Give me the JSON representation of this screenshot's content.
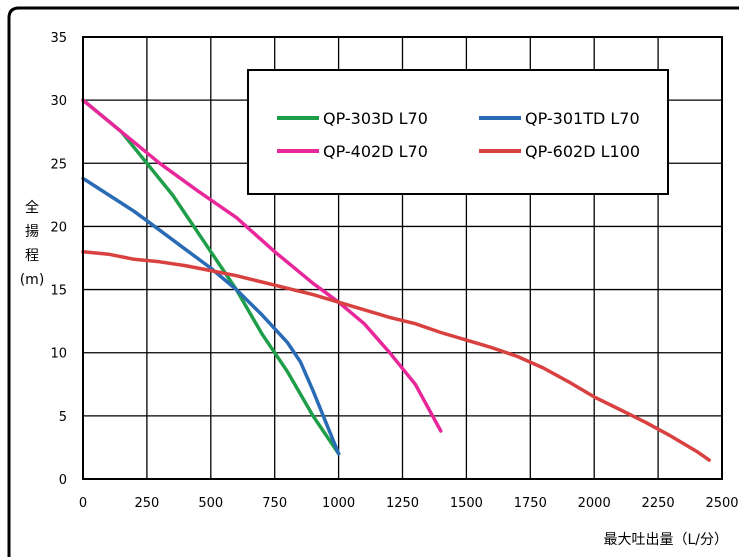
{
  "chart_data": {
    "type": "line",
    "title": "",
    "ylabel": "全揚程(m)",
    "xlabel": "最大吐出量（L/分）",
    "xlim": [
      0,
      2500
    ],
    "ylim": [
      0,
      35
    ],
    "x_ticks": [
      0,
      250,
      500,
      750,
      1000,
      1250,
      1500,
      1750,
      2000,
      2250,
      2500
    ],
    "y_ticks": [
      0,
      5,
      10,
      15,
      20,
      25,
      30,
      35
    ],
    "grid": true,
    "legend_position": "top-right",
    "series": [
      {
        "name": "QP-303D L70",
        "color": "#1f9e4a",
        "points": [
          [
            0,
            30
          ],
          [
            150,
            27.5
          ],
          [
            250,
            25
          ],
          [
            350,
            22.5
          ],
          [
            500,
            18
          ],
          [
            600,
            15
          ],
          [
            700,
            11.5
          ],
          [
            800,
            8.5
          ],
          [
            900,
            5
          ],
          [
            1000,
            2
          ]
        ]
      },
      {
        "name": "QP-402D L70",
        "color": "#e8289a",
        "points": [
          [
            0,
            30
          ],
          [
            150,
            27.5
          ],
          [
            300,
            25
          ],
          [
            450,
            22.8
          ],
          [
            600,
            20.7
          ],
          [
            750,
            18
          ],
          [
            900,
            15.5
          ],
          [
            1000,
            14
          ],
          [
            1100,
            12.3
          ],
          [
            1200,
            10
          ],
          [
            1300,
            7.5
          ],
          [
            1400,
            3.8
          ]
        ]
      },
      {
        "name": "QP-301TD L70",
        "color": "#2a6bb5",
        "points": [
          [
            0,
            23.8
          ],
          [
            100,
            22.5
          ],
          [
            200,
            21.2
          ],
          [
            300,
            19.7
          ],
          [
            400,
            18.2
          ],
          [
            500,
            16.7
          ],
          [
            600,
            15
          ],
          [
            700,
            13
          ],
          [
            800,
            10.8
          ],
          [
            850,
            9.3
          ],
          [
            900,
            7
          ],
          [
            950,
            4.5
          ],
          [
            1000,
            2
          ]
        ]
      },
      {
        "name": "QP-602D L100",
        "color": "#d94141",
        "points": [
          [
            0,
            18
          ],
          [
            100,
            17.8
          ],
          [
            200,
            17.4
          ],
          [
            300,
            17.2
          ],
          [
            400,
            16.9
          ],
          [
            500,
            16.5
          ],
          [
            600,
            16.1
          ],
          [
            700,
            15.6
          ],
          [
            800,
            15.1
          ],
          [
            900,
            14.6
          ],
          [
            1000,
            14
          ],
          [
            1100,
            13.4
          ],
          [
            1200,
            12.8
          ],
          [
            1300,
            12.3
          ],
          [
            1400,
            11.6
          ],
          [
            1500,
            11
          ],
          [
            1600,
            10.4
          ],
          [
            1700,
            9.7
          ],
          [
            1800,
            8.8
          ],
          [
            1900,
            7.7
          ],
          [
            2000,
            6.5
          ],
          [
            2100,
            5.5
          ],
          [
            2200,
            4.5
          ],
          [
            2300,
            3.4
          ],
          [
            2400,
            2.2
          ],
          [
            2450,
            1.5
          ]
        ]
      }
    ]
  },
  "legend_order": [
    0,
    2,
    1,
    3
  ]
}
